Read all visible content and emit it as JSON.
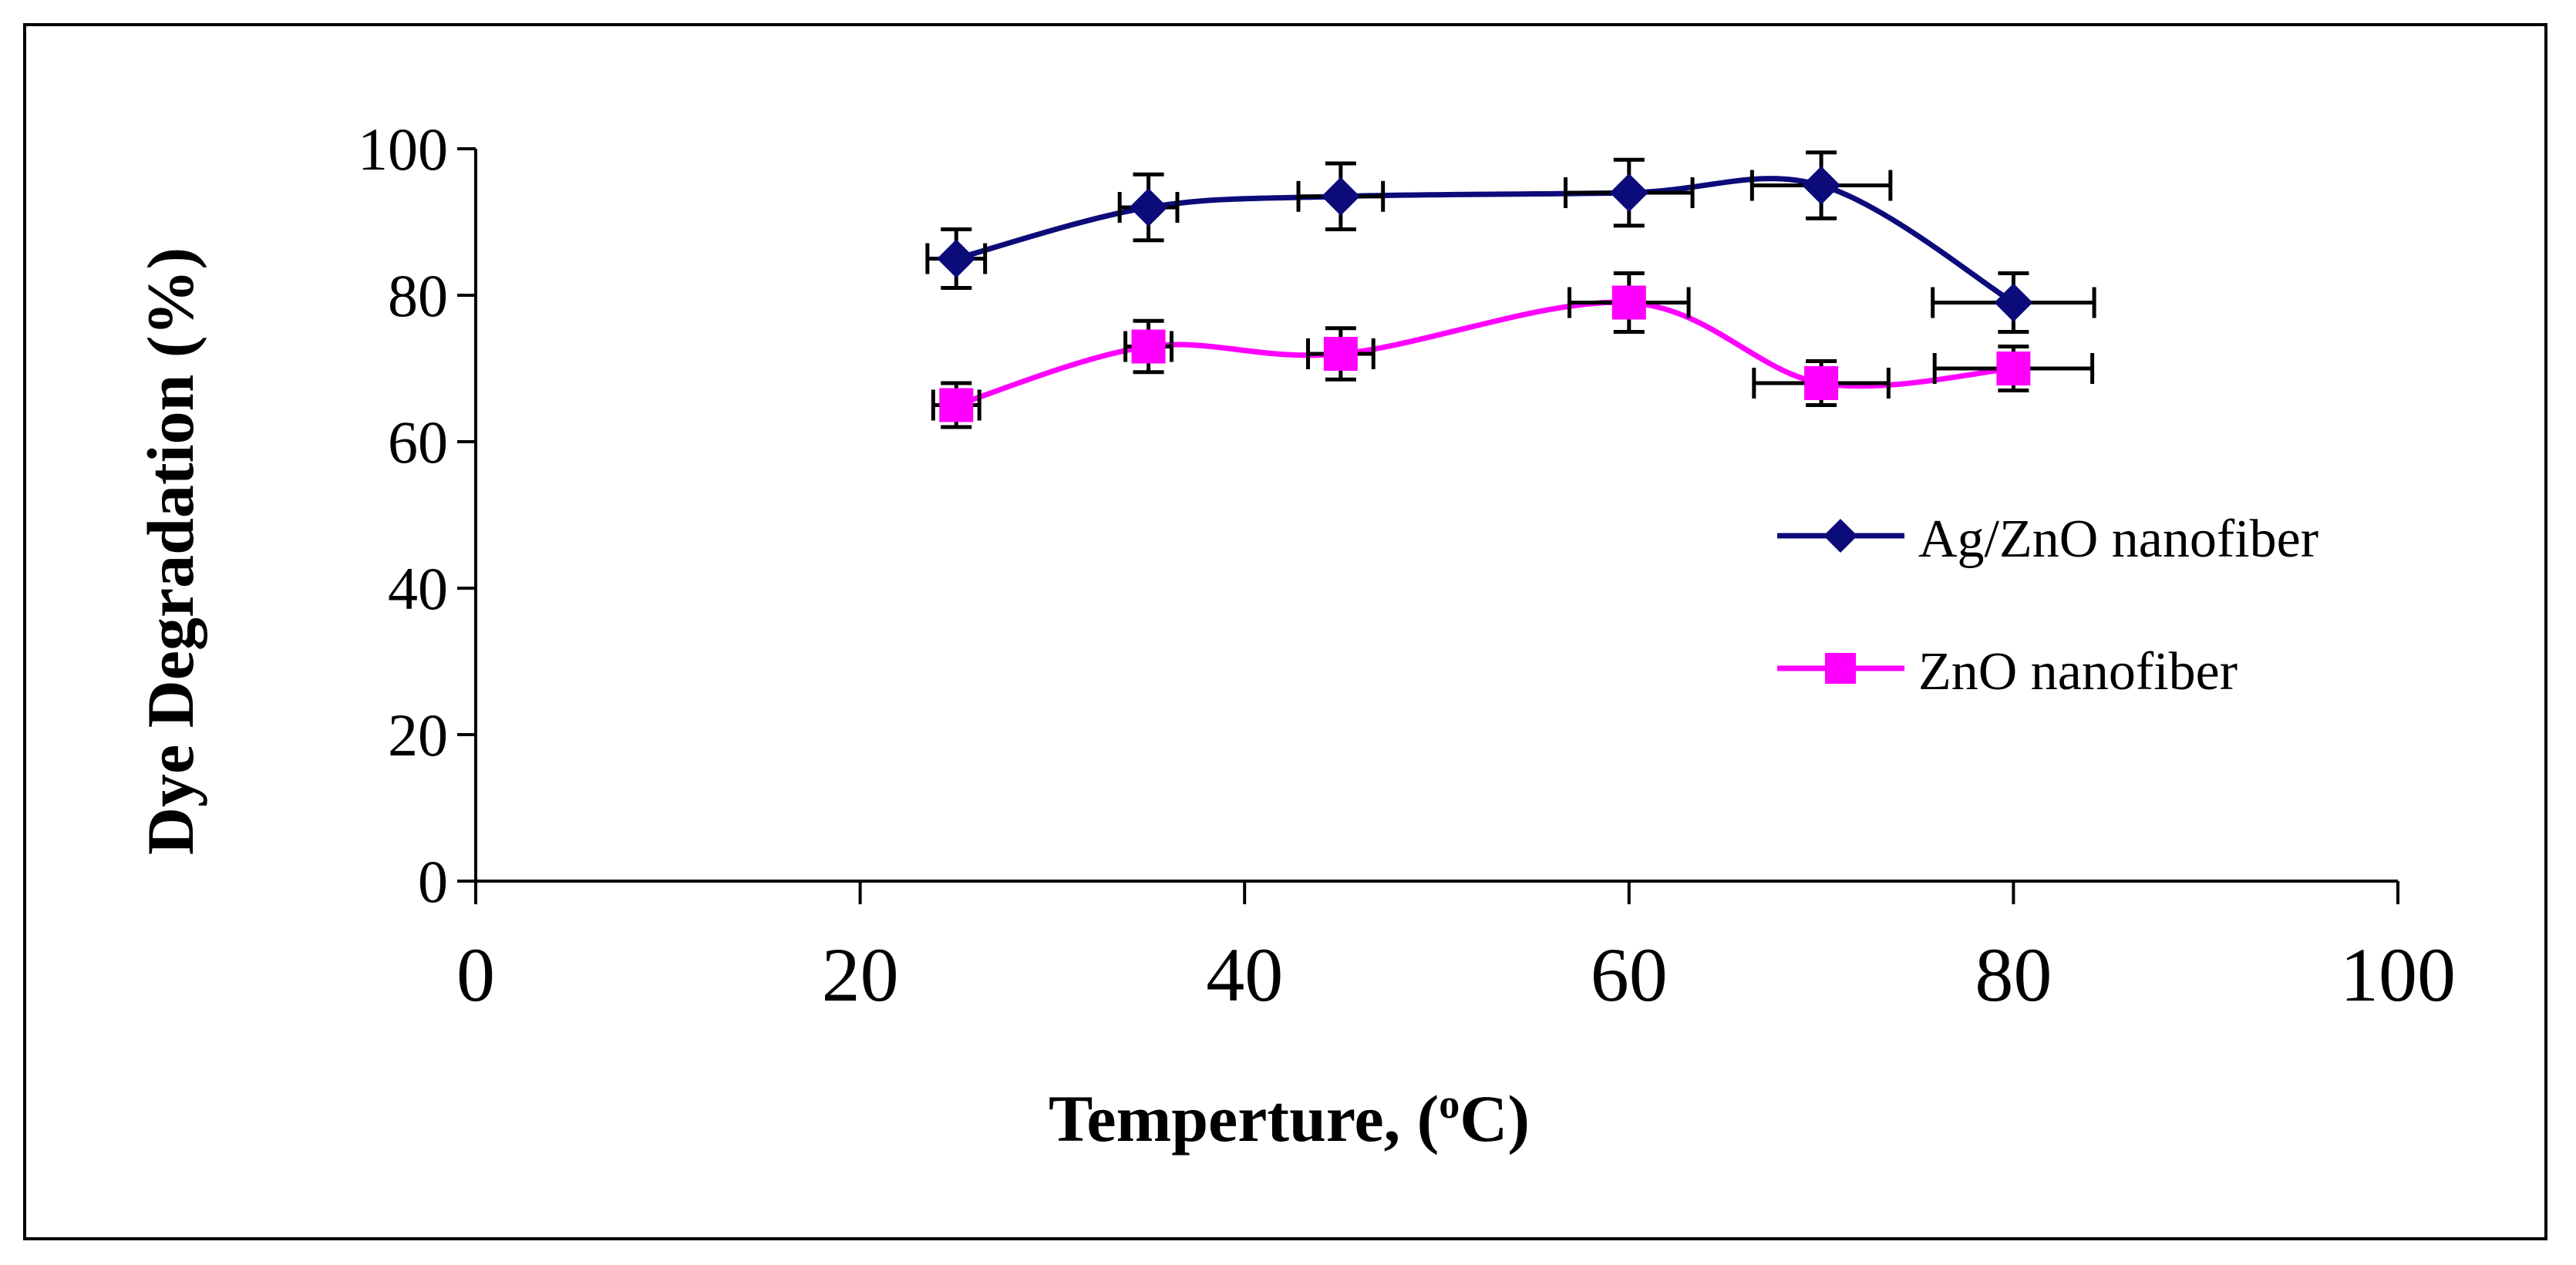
{
  "chart_data": {
    "type": "scatter",
    "xlabel_main": "Temperture,  (",
    "xlabel_sup": "o",
    "xlabel_end": "C)",
    "ylabel": "Dye Degradation (%)",
    "xlim": [
      0,
      100
    ],
    "ylim": [
      0,
      100
    ],
    "x_ticks": [
      "0",
      "20",
      "40",
      "60",
      "80",
      "100"
    ],
    "y_ticks": [
      "0",
      "20",
      "40",
      "60",
      "80",
      "100"
    ],
    "grid": false,
    "legend_position": "right",
    "series": [
      {
        "name": "Ag/ZnO nanofiber",
        "color": "#0b0b7a",
        "marker": "diamond",
        "smooth": true,
        "points": [
          {
            "x": 25,
            "y": 85,
            "yerr": 4,
            "xerr": 1.5
          },
          {
            "x": 35,
            "y": 92,
            "yerr": 4.5,
            "xerr": 1.5
          },
          {
            "x": 45,
            "y": 93.5,
            "yerr": 4.5,
            "xerr": 2.2
          },
          {
            "x": 60,
            "y": 94,
            "yerr": 4.5,
            "xerr": 3.3
          },
          {
            "x": 70,
            "y": 95,
            "yerr": 4.5,
            "xerr": 3.6
          },
          {
            "x": 80,
            "y": 79,
            "yerr": 4,
            "xerr": 4.2
          }
        ]
      },
      {
        "name": "ZnO nanofiber",
        "color": "#ff00ff",
        "marker": "square",
        "smooth": true,
        "points": [
          {
            "x": 25,
            "y": 65,
            "yerr": 3,
            "xerr": 1.2
          },
          {
            "x": 35,
            "y": 73,
            "yerr": 3.5,
            "xerr": 1.2
          },
          {
            "x": 45,
            "y": 72,
            "yerr": 3.5,
            "xerr": 1.7
          },
          {
            "x": 60,
            "y": 79,
            "yerr": 4,
            "xerr": 3.1
          },
          {
            "x": 70,
            "y": 68,
            "yerr": 3,
            "xerr": 3.5
          },
          {
            "x": 80,
            "y": 70,
            "yerr": 3,
            "xerr": 4.1
          }
        ]
      }
    ]
  }
}
